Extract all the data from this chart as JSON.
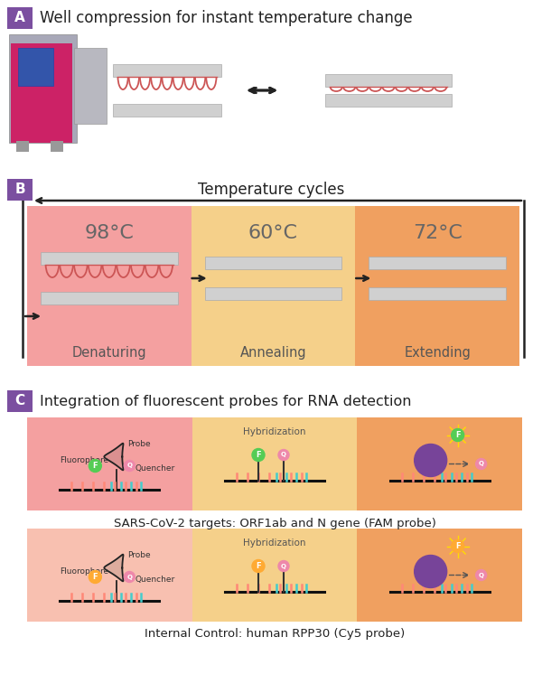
{
  "bg_color": "#ffffff",
  "label_purple": "#7b4fa0",
  "section_A_title": "Well compression for instant temperature change",
  "section_B_title": "Temperature cycles",
  "section_C_title": "Integration of fluorescent probes for RNA detection",
  "temp_98": "98°C",
  "temp_60": "60°C",
  "temp_72": "72°C",
  "label_denaturing": "Denaturing",
  "label_annealing": "Annealing",
  "label_extending": "Extending",
  "col1_color": "#f4a0a0",
  "col2_color": "#f5d08a",
  "col3_color": "#f0a060",
  "col1_color_ic": "#f8c0b0",
  "sars_label": "SARS-CoV-2 targets: ORF1ab and N gene (FAM probe)",
  "ic_label": "Internal Control: human RPP30 (Cy5 probe)",
  "green_color": "#55cc55",
  "pink_color": "#ee88aa",
  "orange_color": "#ffaa33",
  "purple_color": "#774499",
  "cyan_color": "#44cccc",
  "salmon_color": "#ff8877"
}
